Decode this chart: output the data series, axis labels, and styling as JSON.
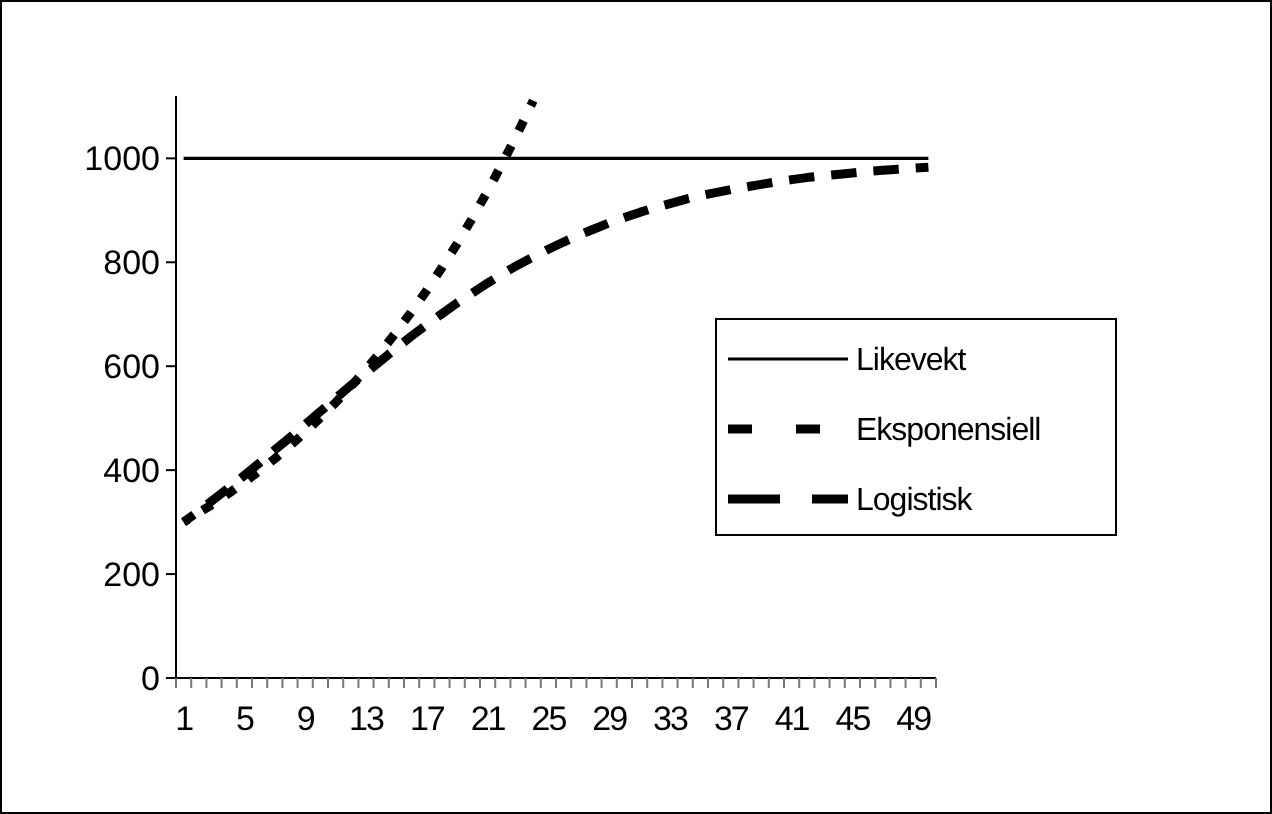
{
  "chart_data": {
    "type": "line",
    "categories": [
      "1",
      null,
      null,
      null,
      "5",
      null,
      null,
      null,
      "9",
      null,
      null,
      null,
      "13",
      null,
      null,
      null,
      "17",
      null,
      null,
      null,
      "21",
      null,
      null,
      null,
      "25",
      null,
      null,
      null,
      "29",
      null,
      null,
      null,
      "33",
      null,
      null,
      null,
      "37",
      null,
      null,
      null,
      "41",
      null,
      null,
      null,
      "45",
      null,
      null,
      null,
      "49",
      null
    ],
    "series": [
      {
        "name": "Likevekt",
        "color": "#000000",
        "line_style": "solid",
        "values": [
          1000,
          1000,
          1000,
          1000,
          1000,
          1000,
          1000,
          1000,
          1000,
          1000,
          1000,
          1000,
          1000,
          1000,
          1000,
          1000,
          1000,
          1000,
          1000,
          1000,
          1000,
          1000,
          1000,
          1000,
          1000,
          1000,
          1000,
          1000,
          1000,
          1000,
          1000,
          1000,
          1000,
          1000,
          1000,
          1000,
          1000,
          1000,
          1000,
          1000,
          1000,
          1000,
          1000,
          1000,
          1000,
          1000,
          1000,
          1000,
          1000,
          1000
        ]
      },
      {
        "name": "Eksponensiell",
        "color": "#000000",
        "line_style": "dotted",
        "values": [
          300,
          318,
          336,
          356,
          377,
          399,
          422,
          447,
          473,
          501,
          530,
          561,
          594,
          629,
          666,
          705,
          746,
          790,
          836,
          885,
          937,
          992,
          1050,
          1111,
          null,
          null,
          null,
          null,
          null,
          null,
          null,
          null,
          null,
          null,
          null,
          null,
          null,
          null,
          null,
          null,
          null,
          null,
          null,
          null,
          null,
          null,
          null,
          null,
          null,
          null
        ]
      },
      {
        "name": "Logistisk",
        "color": "#000000",
        "line_style": "dashed",
        "values": [
          300,
          321,
          344,
          367,
          390,
          414,
          439,
          463,
          488,
          513,
          538,
          563,
          587,
          611,
          635,
          658,
          680,
          701,
          722,
          741,
          760,
          778,
          795,
          810,
          825,
          839,
          852,
          864,
          876,
          886,
          896,
          905,
          913,
          921,
          928,
          934,
          940,
          945,
          950,
          955,
          959,
          963,
          966,
          969,
          972,
          975,
          977,
          979,
          981,
          983
        ]
      }
    ],
    "ylim": [
      0,
      1120
    ],
    "yticks": [
      0,
      200,
      400,
      600,
      800,
      1000
    ],
    "grid": false,
    "legend": "right"
  }
}
